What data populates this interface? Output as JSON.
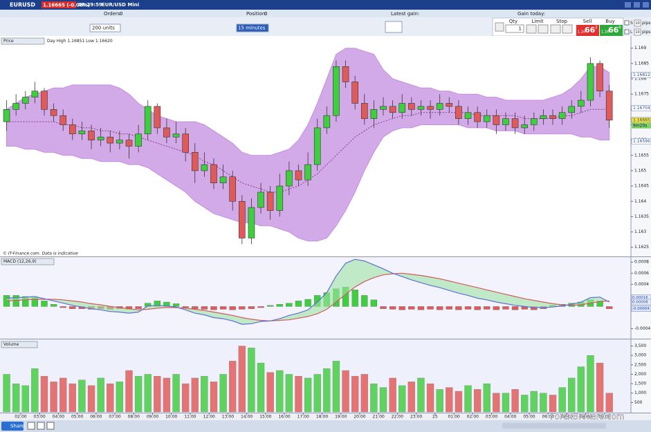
{
  "header": {
    "symbol": "EURUSD",
    "price": "1.16665 (-0.06%)",
    "time": "09:29:59",
    "instrument": "EUR/USD Mini"
  },
  "toolbar": {
    "orders_label": "Orders:",
    "orders": "0",
    "position_label": "Position:",
    "position": "0",
    "latest_gain": "Latest gain:",
    "gain_today": "Gain today:",
    "units": "200 units",
    "interval": "15 minutes"
  },
  "trade": {
    "qty_label": "Qty",
    "qty": "1",
    "limit": "Limit",
    "stop": "Stop",
    "sell": "Sell",
    "buy": "Buy",
    "sell_big": "1.16",
    "sell_pips": "66",
    "sell_frac": "2",
    "buy_big": "1.16",
    "buy_pips": "66",
    "buy_frac": "6",
    "s": "S",
    "l": "L",
    "s_pips": "10",
    "l_pips": "10",
    "pips_s": "pips",
    "pips_l": "pips"
  },
  "footer": {
    "share": "Share",
    "watermark": "ForexBrokers.com"
  },
  "chart_data": [
    {
      "type": "candlestick",
      "title": "Price",
      "subtitle": "Day High 1.16851 Low 1.16620",
      "note": "© IT-Finance.com. Data is indicative",
      "up_color": "#3ecf3e",
      "down_color": "#e05a5a",
      "band_color": "#c48ee0",
      "ma_color": "#8a3a8a",
      "xlim": [
        0.9,
        34.4
      ],
      "xticks": [
        {
          "value": 2,
          "label": "02:00"
        },
        {
          "value": 3,
          "label": "03:00"
        },
        {
          "value": 4,
          "label": "04:00"
        },
        {
          "value": 5,
          "label": "05:00"
        },
        {
          "value": 6,
          "label": "06:00"
        },
        {
          "value": 7,
          "label": "07:00"
        },
        {
          "value": 8,
          "label": "08:00"
        },
        {
          "value": 9,
          "label": "09:00"
        },
        {
          "value": 10,
          "label": "10:00"
        },
        {
          "value": 11,
          "label": "11:00"
        },
        {
          "value": 12,
          "label": "12:00"
        },
        {
          "value": 13,
          "label": "13:00"
        },
        {
          "value": 14,
          "label": "14:00"
        },
        {
          "value": 15,
          "label": "15:00"
        },
        {
          "value": 16,
          "label": "16:00"
        },
        {
          "value": 17,
          "label": "17:00"
        },
        {
          "value": 18,
          "label": "18:00"
        },
        {
          "value": 19,
          "label": "19:00"
        },
        {
          "value": 20,
          "label": "20:00"
        },
        {
          "value": 21,
          "label": "21:00"
        },
        {
          "value": 22,
          "label": "22:00"
        },
        {
          "value": 23,
          "label": "23:00"
        },
        {
          "value": 24,
          "label": "25"
        },
        {
          "value": 25,
          "label": "01:00"
        },
        {
          "value": 26,
          "label": "02:00"
        },
        {
          "value": 27,
          "label": "03:00"
        },
        {
          "value": 28,
          "label": "04:00"
        },
        {
          "value": 29,
          "label": "05:00"
        },
        {
          "value": 30,
          "label": "06:00"
        },
        {
          "value": 31,
          "label": "07:00"
        },
        {
          "value": 32,
          "label": "08:00"
        },
        {
          "value": 33,
          "label": "09:00"
        }
      ],
      "ylim": [
        1.1622,
        1.1694
      ],
      "yticks": [
        1.169,
        1.1685,
        1.168,
        1.1675,
        1.167,
        1.1665,
        1.166,
        1.1655,
        1.165,
        1.1645,
        1.164,
        1.1635,
        1.163,
        1.1625
      ],
      "price_tags": [
        1.16812,
        1.16704,
        1.16665,
        1.16596
      ],
      "countdown": "9m20s",
      "x": [
        1.25,
        1.75,
        2.25,
        2.75,
        3.25,
        3.75,
        4.25,
        4.75,
        5.25,
        5.75,
        6.25,
        6.75,
        7.25,
        7.75,
        8.25,
        8.75,
        9.25,
        9.75,
        10.25,
        10.75,
        11.25,
        11.75,
        12.25,
        12.75,
        13.25,
        13.75,
        14.25,
        14.75,
        15.25,
        15.75,
        16.25,
        16.75,
        17.25,
        17.75,
        18.25,
        18.75,
        19.25,
        19.75,
        20.25,
        20.75,
        21.25,
        21.75,
        22.25,
        22.75,
        23.25,
        23.75,
        24.25,
        24.75,
        25.25,
        25.75,
        26.25,
        26.75,
        27.25,
        27.75,
        28.25,
        28.75,
        29.25,
        29.75,
        30.25,
        30.75,
        31.25,
        31.75,
        32.25,
        32.75,
        33.25
      ],
      "open": [
        1.1666,
        1.167,
        1.1672,
        1.1674,
        1.1676,
        1.167,
        1.1668,
        1.1665,
        1.1662,
        1.1663,
        1.166,
        1.1661,
        1.1659,
        1.166,
        1.1658,
        1.1662,
        1.1671,
        1.1664,
        1.1661,
        1.1662,
        1.1656,
        1.165,
        1.1652,
        1.1646,
        1.1648,
        1.164,
        1.1628,
        1.1638,
        1.1643,
        1.1637,
        1.1645,
        1.165,
        1.1647,
        1.1652,
        1.1664,
        1.1668,
        1.1684,
        1.1679,
        1.1672,
        1.1667,
        1.167,
        1.1671,
        1.1669,
        1.1672,
        1.167,
        1.1671,
        1.167,
        1.1672,
        1.1671,
        1.1667,
        1.1669,
        1.1666,
        1.1668,
        1.1665,
        1.1667,
        1.1664,
        1.1665,
        1.1667,
        1.1668,
        1.1667,
        1.1669,
        1.1671,
        1.1673,
        1.1685,
        1.1676
      ],
      "high": [
        1.1673,
        1.1675,
        1.1676,
        1.1679,
        1.1677,
        1.1672,
        1.167,
        1.1667,
        1.1666,
        1.1665,
        1.1664,
        1.1663,
        1.1663,
        1.1662,
        1.1665,
        1.1673,
        1.1672,
        1.1667,
        1.1666,
        1.1664,
        1.1659,
        1.1656,
        1.1654,
        1.1652,
        1.165,
        1.1642,
        1.1641,
        1.1646,
        1.1645,
        1.1649,
        1.1653,
        1.1652,
        1.1656,
        1.1667,
        1.1671,
        1.1686,
        1.1686,
        1.1681,
        1.1675,
        1.1673,
        1.1674,
        1.1673,
        1.1675,
        1.1674,
        1.1673,
        1.1673,
        1.1675,
        1.1674,
        1.1673,
        1.1671,
        1.1671,
        1.167,
        1.167,
        1.1669,
        1.1669,
        1.1668,
        1.1669,
        1.167,
        1.167,
        1.1671,
        1.1673,
        1.1676,
        1.1687,
        1.1686,
        1.1678
      ],
      "low": [
        1.1663,
        1.1668,
        1.167,
        1.1672,
        1.1668,
        1.1666,
        1.1663,
        1.166,
        1.166,
        1.1657,
        1.1658,
        1.1656,
        1.1657,
        1.1654,
        1.1656,
        1.166,
        1.1662,
        1.1659,
        1.1659,
        1.1653,
        1.1646,
        1.1648,
        1.1644,
        1.1644,
        1.1637,
        1.1626,
        1.1626,
        1.1636,
        1.1634,
        1.1635,
        1.1642,
        1.1645,
        1.1645,
        1.165,
        1.1662,
        1.1666,
        1.1677,
        1.167,
        1.1665,
        1.1664,
        1.1668,
        1.1667,
        1.1667,
        1.1668,
        1.1668,
        1.1667,
        1.1668,
        1.1669,
        1.1665,
        1.1665,
        1.1664,
        1.1664,
        1.1662,
        1.1663,
        1.1662,
        1.1662,
        1.1663,
        1.1665,
        1.1665,
        1.1665,
        1.1667,
        1.1669,
        1.1671,
        1.1674,
        1.1664
      ],
      "close": [
        1.167,
        1.1672,
        1.1674,
        1.1676,
        1.167,
        1.1668,
        1.1665,
        1.1662,
        1.1663,
        1.166,
        1.1661,
        1.1659,
        1.166,
        1.1658,
        1.1662,
        1.1671,
        1.1664,
        1.1661,
        1.1662,
        1.1656,
        1.165,
        1.1652,
        1.1646,
        1.1648,
        1.164,
        1.1628,
        1.1638,
        1.1643,
        1.1637,
        1.1645,
        1.165,
        1.1647,
        1.1652,
        1.1664,
        1.1668,
        1.1684,
        1.1679,
        1.1672,
        1.1667,
        1.167,
        1.1671,
        1.1669,
        1.1672,
        1.167,
        1.1671,
        1.167,
        1.1672,
        1.1671,
        1.1667,
        1.1669,
        1.1666,
        1.1668,
        1.1665,
        1.1667,
        1.1664,
        1.1665,
        1.1667,
        1.1668,
        1.1667,
        1.1669,
        1.1671,
        1.1673,
        1.1685,
        1.1676,
        1.16665
      ],
      "upper": [
        1.167,
        1.1672,
        1.1674,
        1.1675,
        1.1676,
        1.1677,
        1.1677,
        1.1678,
        1.1678,
        1.1678,
        1.1678,
        1.1678,
        1.1677,
        1.1675,
        1.1672,
        1.167,
        1.1668,
        1.1667,
        1.1666,
        1.1666,
        1.1666,
        1.1665,
        1.1663,
        1.1661,
        1.1659,
        1.1656,
        1.1655,
        1.1655,
        1.1655,
        1.1656,
        1.1657,
        1.166,
        1.1665,
        1.1672,
        1.168,
        1.1688,
        1.169,
        1.169,
        1.1689,
        1.1688,
        1.1683,
        1.168,
        1.1679,
        1.1678,
        1.1677,
        1.1677,
        1.1676,
        1.1676,
        1.1675,
        1.1675,
        1.1675,
        1.1674,
        1.1674,
        1.1673,
        1.1673,
        1.1673,
        1.1673,
        1.1673,
        1.1674,
        1.1675,
        1.1677,
        1.168,
        1.1684,
        1.1684,
        1.1682
      ],
      "lower": [
        1.1658,
        1.1658,
        1.1657,
        1.1657,
        1.1656,
        1.1656,
        1.1655,
        1.1655,
        1.1654,
        1.1654,
        1.1653,
        1.1653,
        1.1653,
        1.1652,
        1.1652,
        1.1651,
        1.1649,
        1.1647,
        1.1645,
        1.1643,
        1.164,
        1.1638,
        1.1636,
        1.1635,
        1.1634,
        1.1633,
        1.1633,
        1.1632,
        1.1632,
        1.1631,
        1.163,
        1.1628,
        1.1627,
        1.1627,
        1.1628,
        1.1632,
        1.1637,
        1.1643,
        1.165,
        1.1656,
        1.1661,
        1.1663,
        1.1664,
        1.1664,
        1.1665,
        1.1665,
        1.1665,
        1.1665,
        1.1665,
        1.1664,
        1.1664,
        1.1664,
        1.1663,
        1.1663,
        1.1663,
        1.1662,
        1.1662,
        1.1662,
        1.1662,
        1.1662,
        1.1662,
        1.1661,
        1.1661,
        1.166,
        1.166
      ],
      "ma": [
        1.1666,
        1.1666,
        1.1666,
        1.1666,
        1.1666,
        1.1666,
        1.1665,
        1.1665,
        1.1664,
        1.1664,
        1.1663,
        1.1663,
        1.1662,
        1.1662,
        1.1661,
        1.166,
        1.1659,
        1.1658,
        1.1657,
        1.1656,
        1.1655,
        1.1653,
        1.1652,
        1.165,
        1.1648,
        1.1646,
        1.1645,
        1.1644,
        1.1643,
        1.1643,
        1.1644,
        1.1645,
        1.1647,
        1.1649,
        1.1652,
        1.1655,
        1.1658,
        1.1661,
        1.1663,
        1.1665,
        1.1666,
        1.1667,
        1.1668,
        1.1668,
        1.1669,
        1.1669,
        1.1669,
        1.1669,
        1.1669,
        1.1669,
        1.1668,
        1.1668,
        1.1668,
        1.1668,
        1.1668,
        1.1667,
        1.1667,
        1.1667,
        1.1667,
        1.1668,
        1.1668,
        1.1669,
        1.167,
        1.167,
        1.167
      ]
    },
    {
      "type": "macd",
      "title": "MACD (12,26,9)",
      "macd_color": "#5b6fd6",
      "signal_color": "#d45a5a",
      "up_color": "#3ecf3e",
      "down_color": "#e05a5a",
      "ylim": [
        -0.00058,
        0.00089
      ],
      "yticks": [
        0.0008,
        0.0006,
        0.0004,
        -0.0004
      ],
      "tags": [
        0.00016,
        8e-05,
        -4e-05
      ],
      "macd": [
        0.00015,
        0.00016,
        0.00017,
        0.00018,
        0.00014,
        0.0001,
        6e-05,
        2e-05,
        -1e-05,
        -4e-05,
        -6e-05,
        -9e-05,
        -0.0001,
        -0.00012,
        -0.0001,
        1e-05,
        2e-05,
        1e-05,
        -1e-05,
        -6e-05,
        -0.00012,
        -0.00015,
        -0.0002,
        -0.00022,
        -0.00026,
        -0.00032,
        -0.00031,
        -0.00027,
        -0.00026,
        -0.00022,
        -0.00016,
        -0.00012,
        -6e-05,
        8e-05,
        0.00025,
        0.00055,
        0.00078,
        0.00085,
        0.00082,
        0.00075,
        0.00068,
        0.0006,
        0.00054,
        0.00048,
        0.00043,
        0.00038,
        0.00034,
        0.00029,
        0.00024,
        0.0002,
        0.00015,
        0.00012,
        8e-05,
        5e-05,
        2e-05,
        0,
        -2e-05,
        -2e-05,
        -1e-05,
        1e-05,
        4e-05,
        8e-05,
        0.00016,
        0.00017,
        8e-05
      ],
      "signal": [
        0.0001,
        0.00011,
        0.00012,
        0.00013,
        0.00013,
        0.00013,
        0.00012,
        0.0001,
        8e-05,
        5e-05,
        3e-05,
        0,
        -2e-05,
        -4e-05,
        -6e-05,
        -5e-05,
        -3e-05,
        -2e-05,
        -2e-05,
        -3e-05,
        -5e-05,
        -7e-05,
        -0.0001,
        -0.00013,
        -0.00016,
        -0.0002,
        -0.00023,
        -0.00025,
        -0.00026,
        -0.00025,
        -0.00024,
        -0.00021,
        -0.00018,
        -0.00013,
        -5e-05,
        8e-05,
        0.00022,
        0.00035,
        0.00045,
        0.00052,
        0.00057,
        0.00059,
        0.0006,
        0.00058,
        0.00056,
        0.00053,
        0.0005,
        0.00046,
        0.00042,
        0.00038,
        0.00034,
        0.0003,
        0.00026,
        0.00022,
        0.00018,
        0.00014,
        0.00011,
        8e-05,
        5e-05,
        3e-05,
        2e-05,
        3e-05,
        6e-05,
        9e-05,
        0.0001
      ],
      "histogram": [
        0.0002,
        0.0002,
        0.00018,
        0.00016,
        0.0001,
        4e-05,
        -2e-05,
        -4e-05,
        -4e-05,
        -5e-05,
        -4e-05,
        -5e-05,
        -4e-05,
        -5e-05,
        -4e-05,
        6e-05,
        0.0001,
        8e-05,
        5e-05,
        -2e-05,
        -4e-05,
        -5e-05,
        -6e-05,
        -5e-05,
        -6e-05,
        -5e-05,
        -4e-05,
        -2e-05,
        2e-05,
        4e-05,
        6e-05,
        0.0001,
        0.00013,
        0.0002,
        0.00025,
        0.00032,
        0.00035,
        0.0003,
        0.0002,
        0.00012,
        -4e-05,
        -5e-05,
        -6e-05,
        -5e-05,
        -6e-05,
        -5e-05,
        -6e-05,
        -5e-05,
        -6e-05,
        -5e-05,
        -6e-05,
        -5e-05,
        -6e-05,
        -5e-05,
        -6e-05,
        -5e-05,
        -6e-05,
        -4e-05,
        2e-05,
        4e-05,
        6e-05,
        8e-05,
        0.00012,
        0.0001,
        -4e-05
      ]
    },
    {
      "type": "volume",
      "title": "Volume",
      "up_color": "#5ed35e",
      "down_color": "#e57373",
      "ylim": [
        0,
        3850
      ],
      "yticks": [
        {
          "value": 3500,
          "label": "3,500"
        },
        {
          "value": 3000,
          "label": "3,000"
        },
        {
          "value": 2500,
          "label": "2,500"
        },
        {
          "value": 2000,
          "label": "2,000"
        },
        {
          "value": 1500,
          "label": "1,500"
        },
        {
          "value": 1000,
          "label": "1,000"
        },
        500
      ],
      "values": [
        2000,
        1500,
        1400,
        2300,
        1900,
        1600,
        1800,
        1500,
        1700,
        1400,
        1800,
        1500,
        1600,
        2200,
        1900,
        2000,
        1900,
        1800,
        2000,
        1500,
        1800,
        1900,
        1600,
        2000,
        2700,
        3500,
        3400,
        2600,
        2100,
        2200,
        2000,
        1900,
        1800,
        2000,
        2300,
        2700,
        2200,
        1900,
        2000,
        1500,
        1300,
        1800,
        1400,
        1600,
        1800,
        1500,
        1200,
        1300,
        1100,
        1400,
        1200,
        1500,
        1000,
        1000,
        1200,
        900,
        1100,
        1000,
        900,
        1300,
        1800,
        2400,
        3000,
        2600,
        1000
      ]
    }
  ]
}
